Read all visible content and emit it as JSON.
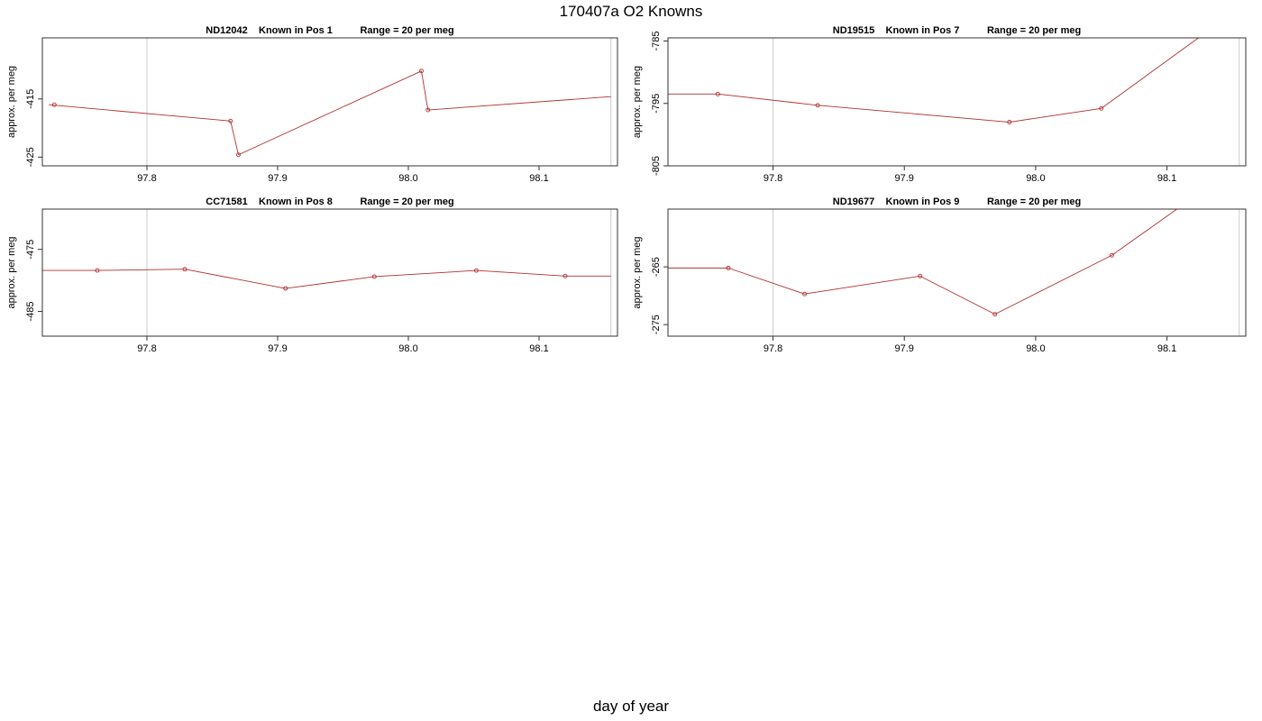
{
  "figure": {
    "title": "170407a   O2 Knowns",
    "xlabel": "day of year",
    "series_color": "#b03030",
    "vline_color": "#cccccc"
  },
  "chart_data": [
    {
      "type": "line",
      "title": "ND12042    Known in Pos 1          Range = 20 per meg",
      "ylabel": "approx. per meg",
      "xlim": [
        97.72,
        98.16
      ],
      "ylim": [
        -426.5,
        -404.5
      ],
      "xticks": [
        97.8,
        97.9,
        98.0,
        98.1
      ],
      "xtick_labels": [
        "97.8",
        "97.9",
        "98.0",
        "98.1"
      ],
      "yticks": [
        -415,
        -425
      ],
      "ytick_labels": [
        "-415",
        "-425"
      ],
      "vlines": [
        97.8,
        98.155
      ],
      "x": [
        97.725,
        97.864,
        97.87,
        98.01,
        98.015,
        98.155
      ],
      "y": [
        -416.0,
        -418.8,
        -424.6,
        -410.2,
        -416.9,
        -414.6
      ]
    },
    {
      "type": "line",
      "title": "ND19515    Known in Pos 7          Range = 20 per meg",
      "ylabel": "approx. per meg",
      "xlim": [
        97.72,
        98.16
      ],
      "ylim": [
        -805.0,
        -784.5
      ],
      "xticks": [
        97.8,
        97.9,
        98.0,
        98.1
      ],
      "xtick_labels": [
        "97.8",
        "97.9",
        "98.0",
        "98.1"
      ],
      "yticks": [
        -785,
        -795,
        -805
      ],
      "ytick_labels": [
        "-785",
        "-795",
        "-805"
      ],
      "vlines": [
        97.8,
        98.155
      ],
      "x": [
        97.72,
        97.758,
        97.834,
        97.98,
        98.05,
        98.16
      ],
      "y": [
        -793.5,
        -793.5,
        -795.3,
        -798.0,
        -795.8,
        -779.0
      ],
      "hidden_segment_after_index": 2
    },
    {
      "type": "line",
      "title": "CC71581    Known in Pos 8          Range = 20 per meg",
      "ylabel": "approx. per meg",
      "xlim": [
        97.72,
        98.16
      ],
      "ylim": [
        -489.0,
        -468.5
      ],
      "xticks": [
        97.8,
        97.9,
        98.0,
        98.1
      ],
      "xtick_labels": [
        "97.8",
        "97.9",
        "98.0",
        "98.1"
      ],
      "yticks": [
        -475,
        -485
      ],
      "ytick_labels": [
        "-475",
        "-485"
      ],
      "vlines": [
        97.8,
        98.155
      ],
      "x": [
        97.72,
        97.762,
        97.829,
        97.906,
        97.974,
        98.052,
        98.12,
        98.155
      ],
      "y": [
        -478.4,
        -478.4,
        -478.2,
        -481.3,
        -479.4,
        -478.4,
        -479.3,
        -479.3
      ]
    },
    {
      "type": "line",
      "title": "ND19677    Known in Pos 9          Range = 20 per meg",
      "ylabel": "approx. per meg",
      "xlim": [
        97.72,
        98.16
      ],
      "ylim": [
        -277.0,
        -255.0
      ],
      "xticks": [
        97.8,
        97.9,
        98.0,
        98.1
      ],
      "xtick_labels": [
        "97.8",
        "97.9",
        "98.0",
        "98.1"
      ],
      "yticks": [
        -265,
        -275
      ],
      "ytick_labels": [
        "-265",
        "-275"
      ],
      "vlines": [
        97.8,
        98.155
      ],
      "x": [
        97.72,
        97.766,
        97.824,
        97.912,
        97.969,
        98.058,
        98.12
      ],
      "y": [
        -265.2,
        -265.2,
        -269.7,
        -266.6,
        -273.2,
        -263.0,
        -253.0
      ]
    }
  ]
}
